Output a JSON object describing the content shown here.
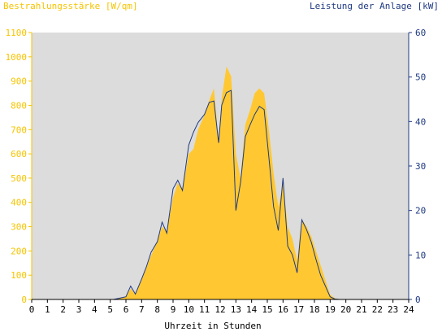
{
  "chart_data": {
    "type": "area",
    "ylabel_left": "Bestrahlungsstärke [W/qm]",
    "ylabel_right": "Leistung der Anlage [kW]",
    "xlabel": "Uhrzeit in Stunden",
    "x_ticks": [
      "0",
      "1",
      "2",
      "3",
      "4",
      "5",
      "6",
      "7",
      "8",
      "9",
      "10",
      "11",
      "12",
      "13",
      "14",
      "15",
      "16",
      "17",
      "18",
      "19",
      "20",
      "21",
      "22",
      "23",
      "24"
    ],
    "y_left_ticks": [
      "0",
      "100",
      "200",
      "300",
      "400",
      "500",
      "600",
      "700",
      "800",
      "900",
      "1000",
      "1100"
    ],
    "y_right_ticks": [
      "0",
      "10",
      "20",
      "30",
      "40",
      "50",
      "60"
    ],
    "xlim": [
      0,
      24
    ],
    "ylim_left": [
      0,
      1100
    ],
    "ylim_right": [
      0,
      60
    ],
    "colors": {
      "irradiance": "#ffc832",
      "power": "#1f3a80",
      "plot_bg": "#dcdcdc",
      "left_axis": "#f5c400",
      "right_axis": "#1f3a80"
    },
    "series": [
      {
        "name": "Bestrahlungsstärke [W/qm]",
        "axis": "left",
        "x": [
          0,
          5.2,
          5.6,
          6.0,
          6.3,
          6.6,
          7.0,
          7.3,
          7.6,
          8.0,
          8.3,
          8.6,
          9.0,
          9.3,
          9.6,
          10.0,
          10.3,
          10.6,
          11.0,
          11.3,
          11.6,
          11.9,
          12.1,
          12.4,
          12.7,
          13.0,
          13.3,
          13.6,
          13.9,
          14.2,
          14.5,
          14.8,
          15.1,
          15.4,
          15.7,
          16.0,
          16.3,
          16.6,
          16.9,
          17.2,
          17.5,
          17.8,
          18.1,
          18.4,
          18.7,
          19.0,
          19.3,
          19.6,
          24
        ],
        "y": [
          0,
          0,
          5,
          10,
          45,
          20,
          80,
          130,
          180,
          240,
          300,
          280,
          420,
          480,
          450,
          600,
          620,
          700,
          760,
          820,
          870,
          650,
          830,
          960,
          920,
          600,
          500,
          720,
          780,
          850,
          870,
          850,
          700,
          520,
          380,
          480,
          300,
          250,
          160,
          330,
          300,
          260,
          200,
          140,
          80,
          20,
          5,
          0,
          0
        ]
      },
      {
        "name": "Leistung der Anlage [kW]",
        "axis": "right",
        "x": [
          0,
          5.2,
          5.6,
          6.0,
          6.3,
          6.6,
          7.0,
          7.3,
          7.6,
          8.0,
          8.3,
          8.6,
          9.0,
          9.3,
          9.6,
          10.0,
          10.3,
          10.6,
          11.0,
          11.3,
          11.6,
          11.9,
          12.1,
          12.4,
          12.7,
          13.0,
          13.3,
          13.6,
          13.9,
          14.2,
          14.5,
          14.8,
          15.1,
          15.4,
          15.7,
          16.0,
          16.3,
          16.6,
          16.9,
          17.2,
          17.5,
          17.8,
          18.1,
          18.4,
          18.7,
          19.0,
          19.3,
          19.6,
          24
        ],
        "y": [
          0,
          0,
          0.3,
          0.6,
          3.0,
          1.2,
          4.6,
          7.3,
          10.6,
          13.0,
          17.4,
          14.9,
          24.9,
          26.8,
          24.5,
          34.7,
          37.6,
          39.8,
          41.6,
          44.3,
          44.6,
          35.2,
          43.7,
          46.5,
          47.0,
          20.0,
          26.3,
          36.6,
          39.2,
          41.6,
          43.4,
          42.7,
          32.0,
          20.9,
          15.5,
          27.3,
          12.0,
          10.0,
          6.0,
          17.9,
          15.7,
          12.9,
          9.0,
          5.4,
          3.0,
          0.6,
          0.1,
          0,
          0
        ]
      }
    ]
  }
}
